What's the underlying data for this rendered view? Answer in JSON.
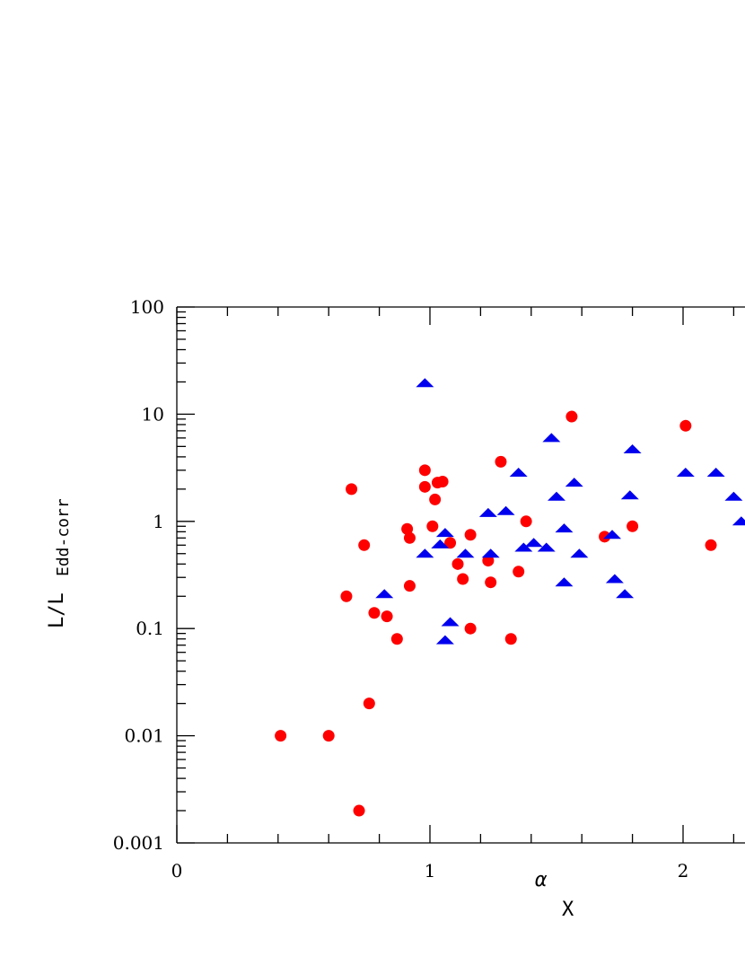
{
  "chart_data": {
    "type": "scatter",
    "xlabel": "α",
    "xlabel_sub": "X",
    "ylabel": "L/L",
    "ylabel_sub": "Edd-corr",
    "xlim": [
      0,
      2.2
    ],
    "ylim": [
      0.001,
      100
    ],
    "yscale": "log",
    "x_ticks": [
      "0",
      "1",
      "2"
    ],
    "y_ticks": [
      "0.001",
      "0.01",
      "0.1",
      "1",
      "10",
      "100"
    ],
    "colors": {
      "circles": "#ff0000",
      "triangles": "#0000ee"
    },
    "series": [
      {
        "marker": "circle",
        "points": [
          {
            "x": 0.41,
            "y": 0.01
          },
          {
            "x": 0.6,
            "y": 0.01
          },
          {
            "x": 0.67,
            "y": 0.2
          },
          {
            "x": 0.69,
            "y": 2.0
          },
          {
            "x": 0.72,
            "y": 0.002
          },
          {
            "x": 0.74,
            "y": 0.6
          },
          {
            "x": 0.76,
            "y": 0.02
          },
          {
            "x": 0.78,
            "y": 0.14
          },
          {
            "x": 0.83,
            "y": 0.13
          },
          {
            "x": 0.87,
            "y": 0.08
          },
          {
            "x": 0.91,
            "y": 0.85
          },
          {
            "x": 0.92,
            "y": 0.25
          },
          {
            "x": 0.92,
            "y": 0.7
          },
          {
            "x": 0.98,
            "y": 3.0
          },
          {
            "x": 0.98,
            "y": 2.1
          },
          {
            "x": 1.01,
            "y": 0.9
          },
          {
            "x": 1.02,
            "y": 1.6
          },
          {
            "x": 1.03,
            "y": 2.3
          },
          {
            "x": 1.05,
            "y": 2.35
          },
          {
            "x": 1.08,
            "y": 0.63
          },
          {
            "x": 1.11,
            "y": 0.4
          },
          {
            "x": 1.13,
            "y": 0.29
          },
          {
            "x": 1.16,
            "y": 0.75
          },
          {
            "x": 1.16,
            "y": 0.1
          },
          {
            "x": 1.23,
            "y": 0.43
          },
          {
            "x": 1.24,
            "y": 0.27
          },
          {
            "x": 1.28,
            "y": 3.6
          },
          {
            "x": 1.32,
            "y": 0.08
          },
          {
            "x": 1.35,
            "y": 0.34
          },
          {
            "x": 1.38,
            "y": 1.0
          },
          {
            "x": 1.56,
            "y": 9.5
          },
          {
            "x": 1.69,
            "y": 0.72
          },
          {
            "x": 1.8,
            "y": 0.9
          },
          {
            "x": 2.01,
            "y": 7.8
          },
          {
            "x": 2.11,
            "y": 0.6
          }
        ]
      },
      {
        "marker": "triangle",
        "points": [
          {
            "x": 0.82,
            "y": 0.21
          },
          {
            "x": 0.98,
            "y": 19.5
          },
          {
            "x": 0.98,
            "y": 0.5
          },
          {
            "x": 1.04,
            "y": 0.61
          },
          {
            "x": 1.06,
            "y": 0.78
          },
          {
            "x": 1.06,
            "y": 0.078
          },
          {
            "x": 1.08,
            "y": 0.115
          },
          {
            "x": 1.14,
            "y": 0.5
          },
          {
            "x": 1.23,
            "y": 1.2
          },
          {
            "x": 1.24,
            "y": 0.5
          },
          {
            "x": 1.3,
            "y": 1.25
          },
          {
            "x": 1.35,
            "y": 2.85
          },
          {
            "x": 1.37,
            "y": 0.57
          },
          {
            "x": 1.41,
            "y": 0.63
          },
          {
            "x": 1.46,
            "y": 0.57
          },
          {
            "x": 1.48,
            "y": 6.0
          },
          {
            "x": 1.5,
            "y": 1.7
          },
          {
            "x": 1.53,
            "y": 0.86
          },
          {
            "x": 1.53,
            "y": 0.27
          },
          {
            "x": 1.57,
            "y": 2.3
          },
          {
            "x": 1.59,
            "y": 0.5
          },
          {
            "x": 1.72,
            "y": 0.75
          },
          {
            "x": 1.73,
            "y": 0.29
          },
          {
            "x": 1.77,
            "y": 0.21
          },
          {
            "x": 1.79,
            "y": 1.75
          },
          {
            "x": 1.8,
            "y": 4.7
          },
          {
            "x": 2.01,
            "y": 2.85
          },
          {
            "x": 2.13,
            "y": 2.85
          },
          {
            "x": 2.2,
            "y": 1.7
          },
          {
            "x": 2.23,
            "y": 1.0
          }
        ]
      }
    ]
  }
}
